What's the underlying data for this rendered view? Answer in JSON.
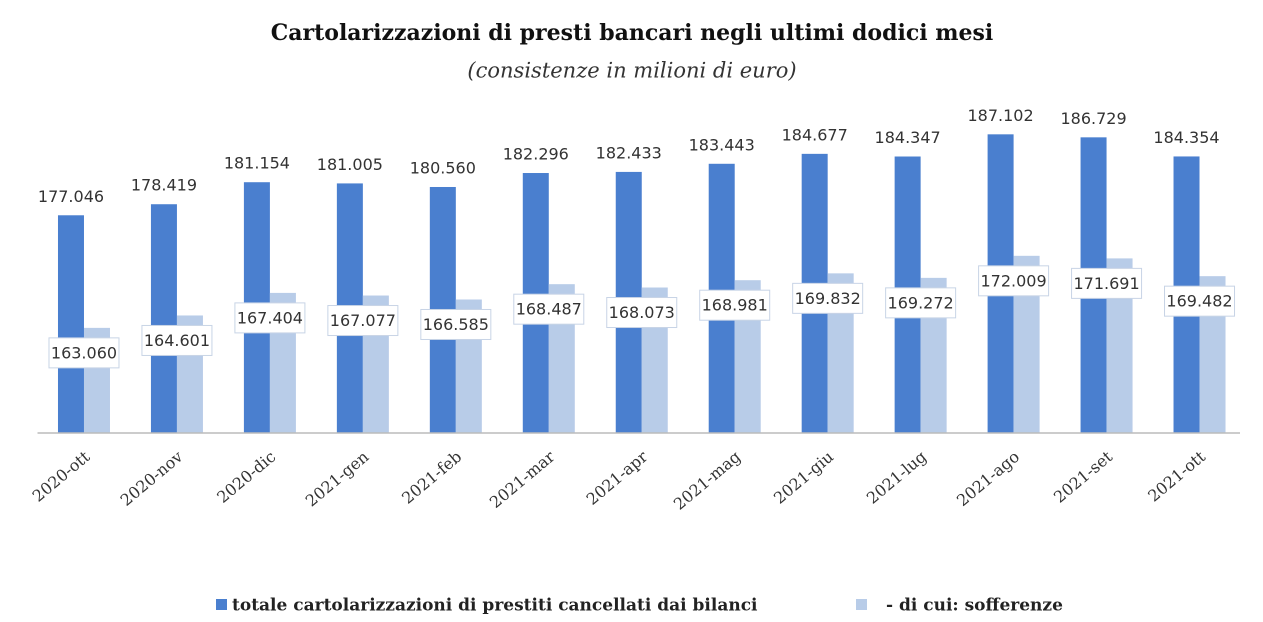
{
  "chart_data": {
    "type": "bar",
    "title": "Cartolarizzazioni di presti bancari negli ultimi dodici mesi",
    "subtitle": "(consistenze in milioni di euro)",
    "categories": [
      "2020-ott",
      "2020-nov",
      "2020-dic",
      "2021-gen",
      "2021-feb",
      "2021-mar",
      "2021-apr",
      "2021-mag",
      "2021-giu",
      "2021-lug",
      "2021-ago",
      "2021-set",
      "2021-ott"
    ],
    "series": [
      {
        "name": "totale cartolarizzazioni di prestiti cancellati dai bilanci",
        "color": "#4a7fcf",
        "values": [
          177046,
          178419,
          181154,
          181005,
          180560,
          182296,
          182433,
          183443,
          184677,
          184347,
          187102,
          186729,
          184354
        ],
        "value_labels": [
          "177.046",
          "178.419",
          "181.154",
          "181.005",
          "180.560",
          "182.296",
          "182.433",
          "183.443",
          "184.677",
          "184.347",
          "187.102",
          "186.729",
          "184.354"
        ]
      },
      {
        "name": "- di cui: sofferenze",
        "color": "#b8cce8",
        "values": [
          163060,
          164601,
          167404,
          167077,
          166585,
          168487,
          168073,
          168981,
          169832,
          169272,
          172009,
          171691,
          169482
        ],
        "value_labels": [
          "163.060",
          "164.601",
          "167.404",
          "167.077",
          "166.585",
          "168.487",
          "168.073",
          "168.981",
          "169.832",
          "169.272",
          "172.009",
          "171.691",
          "169.482"
        ]
      }
    ],
    "ylim": [
      150000,
      190000
    ],
    "legend": "bottom"
  }
}
